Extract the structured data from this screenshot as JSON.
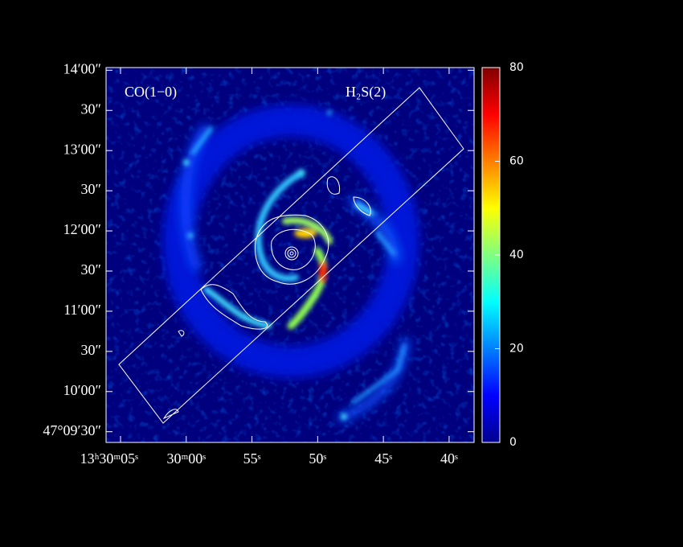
{
  "chart_data": {
    "type": "image",
    "labels": [
      "CO(1−0)",
      "H₂S(2)"
    ],
    "xlim": [
      66.1,
      38.1
    ],
    "xticks": [
      {
        "value": 65,
        "label": "13ʰ30ᵐ05ˢ"
      },
      {
        "value": 60,
        "label": "30ᵐ00ˢ"
      },
      {
        "value": 55,
        "label": "55ˢ"
      },
      {
        "value": 50,
        "label": "50ˢ"
      },
      {
        "value": 45,
        "label": "45ˢ"
      },
      {
        "value": 40,
        "label": "40ˢ"
      }
    ],
    "ylim": [
      562,
      842
    ],
    "yticks": [
      {
        "value": 840,
        "label": "14′00″"
      },
      {
        "value": 810,
        "label": "30″"
      },
      {
        "value": 780,
        "label": "13′00″"
      },
      {
        "value": 750,
        "label": "30″"
      },
      {
        "value": 720,
        "label": "12′00″"
      },
      {
        "value": 690,
        "label": "30″"
      },
      {
        "value": 660,
        "label": "11′00″"
      },
      {
        "value": 630,
        "label": "30″"
      },
      {
        "value": 600,
        "label": "10′00″"
      },
      {
        "value": 570,
        "label": "47°09′30″"
      }
    ],
    "colorbar": {
      "lim": [
        0,
        80
      ],
      "ticks": [
        0,
        20,
        40,
        60,
        80
      ]
    }
  }
}
